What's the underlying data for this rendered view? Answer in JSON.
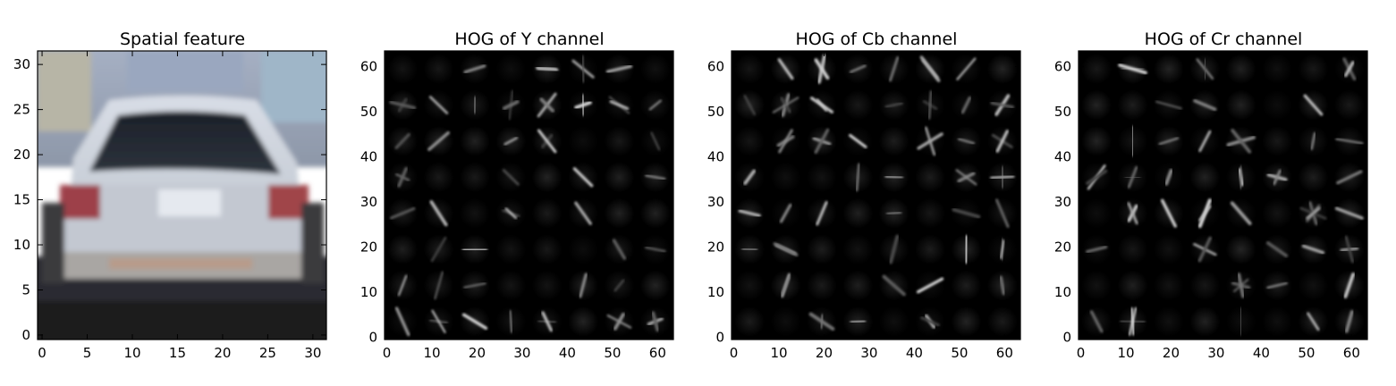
{
  "chart_data": [
    {
      "type": "image",
      "title": "Spatial feature",
      "xlim": [
        -0.5,
        31.5
      ],
      "ylim": [
        31.5,
        -0.5
      ],
      "xticks": [
        0,
        5,
        10,
        15,
        20,
        25,
        30
      ],
      "yticks": [
        0,
        5,
        10,
        15,
        20,
        25,
        30
      ],
      "content": "32x32 RGB image of the rear of a silver car"
    },
    {
      "type": "heatmap",
      "title": "HOG of Y channel",
      "xlim": [
        -0.5,
        63.5
      ],
      "ylim": [
        63.5,
        -0.5
      ],
      "xticks": [
        0,
        10,
        20,
        30,
        40,
        50,
        60
      ],
      "yticks": [
        0,
        10,
        20,
        30,
        40,
        50,
        60
      ],
      "colormap": "gray",
      "grid_cells": 8
    },
    {
      "type": "heatmap",
      "title": "HOG of Cb channel",
      "xlim": [
        -0.5,
        63.5
      ],
      "ylim": [
        63.5,
        -0.5
      ],
      "xticks": [
        0,
        10,
        20,
        30,
        40,
        50,
        60
      ],
      "yticks": [
        0,
        10,
        20,
        30,
        40,
        50,
        60
      ],
      "colormap": "gray",
      "grid_cells": 8
    },
    {
      "type": "heatmap",
      "title": "HOG of Cr channel",
      "xlim": [
        -0.5,
        63.5
      ],
      "ylim": [
        63.5,
        -0.5
      ],
      "xticks": [
        0,
        10,
        20,
        30,
        40,
        50,
        60
      ],
      "yticks": [
        0,
        10,
        20,
        30,
        40,
        50,
        60
      ],
      "colormap": "gray",
      "grid_cells": 8
    }
  ]
}
